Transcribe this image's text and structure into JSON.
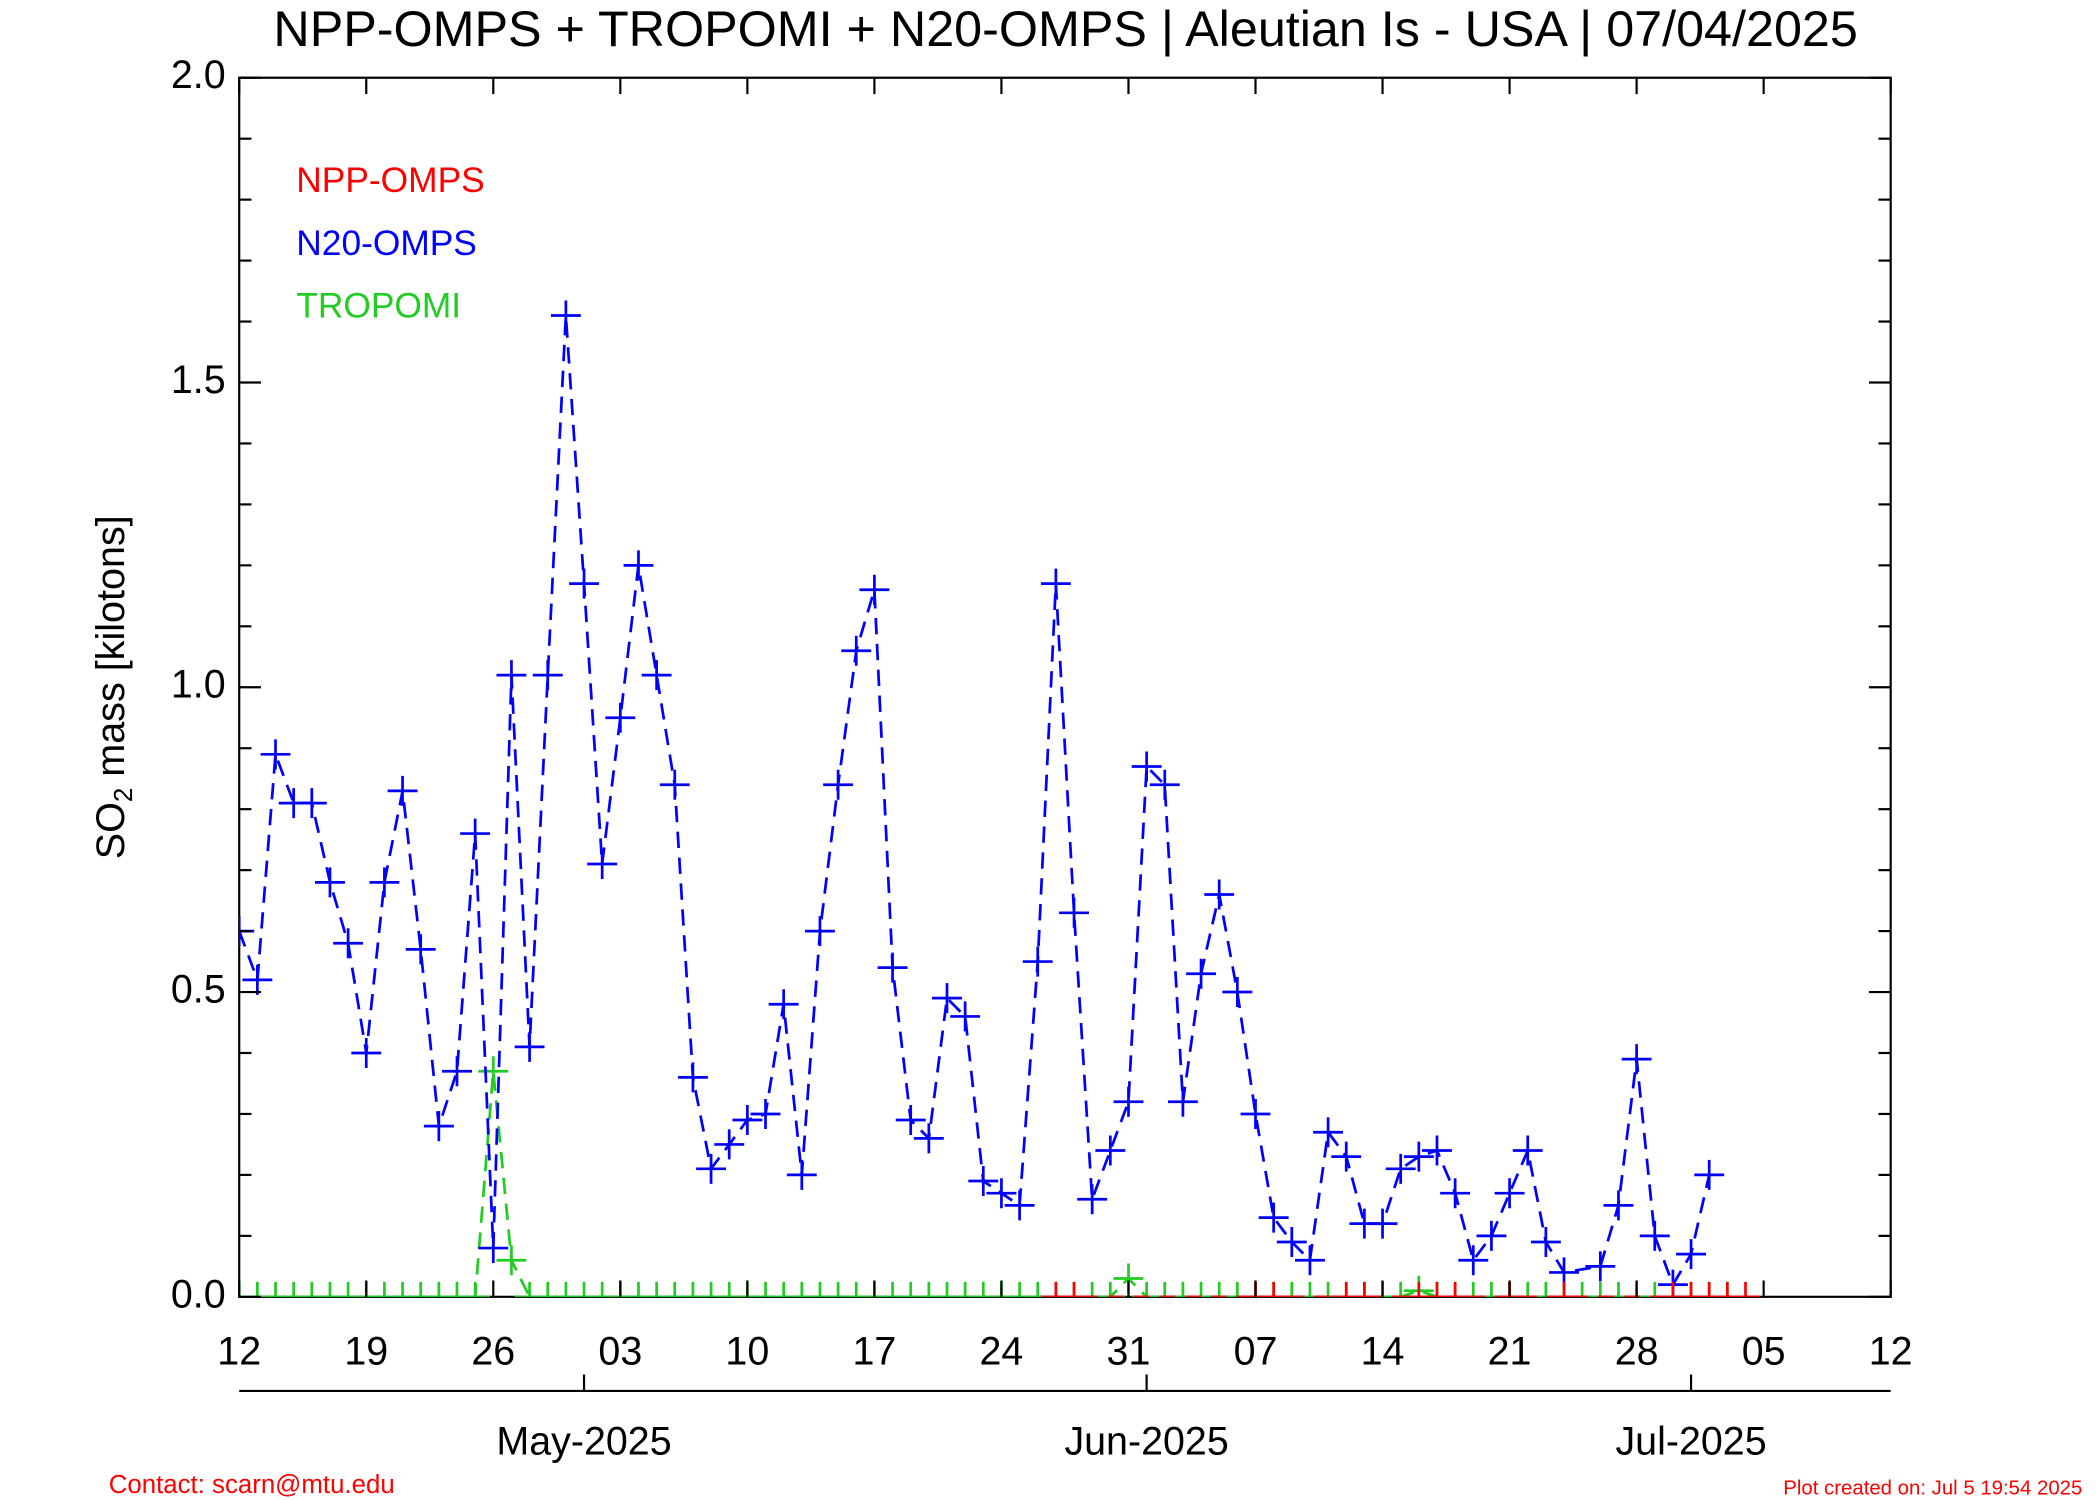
{
  "chart_data": {
    "type": "line",
    "title": "NPP-OMPS + TROPOMI + N20-OMPS | Aleutian Is - USA | 07/04/2025",
    "y_label": {
      "main": "SO",
      "sub": "2",
      "rest": " mass [kilotons]"
    },
    "xlim": [
      "2025-04-12",
      "2025-07-12"
    ],
    "xticks": [
      {
        "value": "2025-04-12",
        "label": "12"
      },
      {
        "value": "2025-04-19",
        "label": "19"
      },
      {
        "value": "2025-04-26",
        "label": "26"
      },
      {
        "value": "2025-05-03",
        "label": "03"
      },
      {
        "value": "2025-05-10",
        "label": "10"
      },
      {
        "value": "2025-05-17",
        "label": "17"
      },
      {
        "value": "2025-05-24",
        "label": "24"
      },
      {
        "value": "2025-05-31",
        "label": "31"
      },
      {
        "value": "2025-06-07",
        "label": "07"
      },
      {
        "value": "2025-06-14",
        "label": "14"
      },
      {
        "value": "2025-06-21",
        "label": "21"
      },
      {
        "value": "2025-06-28",
        "label": "28"
      },
      {
        "value": "2025-07-05",
        "label": "05"
      },
      {
        "value": "2025-07-12",
        "label": "12"
      }
    ],
    "month_ticks": [
      {
        "value": "2025-05-01",
        "label": "May-2025"
      },
      {
        "value": "2025-06-01",
        "label": "Jun-2025"
      },
      {
        "value": "2025-07-01",
        "label": "Jul-2025"
      }
    ],
    "ylim": [
      0,
      2
    ],
    "yticks": [
      {
        "value": 0,
        "label": "0.0"
      },
      0.5,
      {
        "value": 1,
        "label": "1.0"
      },
      1.5,
      {
        "value": 2,
        "label": "2.0"
      }
    ],
    "yticks_minor": [
      0.1,
      0.2,
      0.3,
      0.4,
      0.6,
      0.7,
      0.8,
      0.9,
      1.1,
      1.2,
      1.3,
      1.4,
      1.6,
      1.7,
      1.8,
      1.9
    ],
    "legend": "upper left",
    "series": [
      {
        "name": "NPP-OMPS",
        "color": "#ff0000",
        "x": [
          "2025-05-27",
          "2025-05-28",
          "2025-06-07",
          "2025-06-08",
          "2025-06-12",
          "2025-06-13",
          "2025-06-16",
          "2025-06-17",
          "2025-06-18",
          "2025-06-21",
          "2025-06-24",
          "2025-06-30",
          "2025-07-01",
          "2025-07-02",
          "2025-07-03",
          "2025-07-04"
        ],
        "values": [
          0,
          0,
          0,
          0,
          0,
          0,
          0,
          0,
          0,
          0,
          0,
          0,
          0,
          0,
          0,
          0
        ]
      },
      {
        "name": "N20-OMPS",
        "color": "#0000ff",
        "x": [
          "2025-04-12",
          "2025-04-13",
          "2025-04-14",
          "2025-04-15",
          "2025-04-16",
          "2025-04-17",
          "2025-04-18",
          "2025-04-19",
          "2025-04-20",
          "2025-04-21",
          "2025-04-22",
          "2025-04-23",
          "2025-04-24",
          "2025-04-25",
          "2025-04-26",
          "2025-04-27",
          "2025-04-28",
          "2025-04-29",
          "2025-04-30",
          "2025-05-01",
          "2025-05-02",
          "2025-05-03",
          "2025-05-04",
          "2025-05-05",
          "2025-05-06",
          "2025-05-07",
          "2025-05-08",
          "2025-05-09",
          "2025-05-10",
          "2025-05-11",
          "2025-05-12",
          "2025-05-13",
          "2025-05-14",
          "2025-05-15",
          "2025-05-16",
          "2025-05-17",
          "2025-05-18",
          "2025-05-19",
          "2025-05-20",
          "2025-05-21",
          "2025-05-22",
          "2025-05-23",
          "2025-05-24",
          "2025-05-25",
          "2025-05-26",
          "2025-05-27",
          "2025-05-28",
          "2025-05-29",
          "2025-05-30",
          "2025-05-31",
          "2025-06-01",
          "2025-06-02",
          "2025-06-03",
          "2025-06-04",
          "2025-06-05",
          "2025-06-06",
          "2025-06-07",
          "2025-06-08",
          "2025-06-09",
          "2025-06-10",
          "2025-06-11",
          "2025-06-12",
          "2025-06-13",
          "2025-06-14",
          "2025-06-15",
          "2025-06-16",
          "2025-06-17",
          "2025-06-18",
          "2025-06-19",
          "2025-06-20",
          "2025-06-21",
          "2025-06-22",
          "2025-06-23",
          "2025-06-24",
          "2025-06-26",
          "2025-06-27",
          "2025-06-28",
          "2025-06-29",
          "2025-06-30",
          "2025-07-01",
          "2025-07-02"
        ],
        "values": [
          0.6,
          0.52,
          0.89,
          0.81,
          0.81,
          0.68,
          0.58,
          0.4,
          0.68,
          0.83,
          0.57,
          0.28,
          0.37,
          0.76,
          0.08,
          1.02,
          0.41,
          1.02,
          1.61,
          1.17,
          0.71,
          0.95,
          1.2,
          1.02,
          0.84,
          0.36,
          0.21,
          0.25,
          0.29,
          0.3,
          0.48,
          0.2,
          0.6,
          0.84,
          1.06,
          1.16,
          0.54,
          0.29,
          0.26,
          0.49,
          0.46,
          0.19,
          0.17,
          0.15,
          0.55,
          1.17,
          0.63,
          0.16,
          0.24,
          0.32,
          0.87,
          0.84,
          0.32,
          0.53,
          0.66,
          0.5,
          0.3,
          0.13,
          0.09,
          0.06,
          0.27,
          0.23,
          0.12,
          0.12,
          0.21,
          0.23,
          0.24,
          0.17,
          0.06,
          0.1,
          0.17,
          0.24,
          0.09,
          0.04,
          0.05,
          0.15,
          0.39,
          0.1,
          0.02,
          0.07,
          0.2
        ]
      },
      {
        "name": "TROPOMI",
        "color": "#22cc22",
        "x": [
          "2025-04-12",
          "2025-04-13",
          "2025-04-14",
          "2025-04-15",
          "2025-04-16",
          "2025-04-17",
          "2025-04-18",
          "2025-04-19",
          "2025-04-20",
          "2025-04-21",
          "2025-04-22",
          "2025-04-23",
          "2025-04-24",
          "2025-04-25",
          "2025-04-26",
          "2025-04-27",
          "2025-04-28",
          "2025-04-29",
          "2025-04-30",
          "2025-05-01",
          "2025-05-02",
          "2025-05-03",
          "2025-05-04",
          "2025-05-05",
          "2025-05-06",
          "2025-05-07",
          "2025-05-08",
          "2025-05-09",
          "2025-05-10",
          "2025-05-11",
          "2025-05-12",
          "2025-05-13",
          "2025-05-14",
          "2025-05-15",
          "2025-05-16",
          "2025-05-17",
          "2025-05-18",
          "2025-05-19",
          "2025-05-20",
          "2025-05-21",
          "2025-05-22",
          "2025-05-23",
          "2025-05-24",
          "2025-05-25",
          "2025-05-26",
          "2025-05-27",
          "2025-05-28",
          "2025-05-29",
          "2025-05-30",
          "2025-05-31",
          "2025-06-01",
          "2025-06-02",
          "2025-06-03",
          "2025-06-04",
          "2025-06-05",
          "2025-06-06",
          "2025-06-07",
          "2025-06-08",
          "2025-06-09",
          "2025-06-10",
          "2025-06-11",
          "2025-06-12",
          "2025-06-13",
          "2025-06-14",
          "2025-06-15",
          "2025-06-16",
          "2025-06-17",
          "2025-06-18",
          "2025-06-19",
          "2025-06-20",
          "2025-06-21",
          "2025-06-22",
          "2025-06-23",
          "2025-06-24",
          "2025-06-25",
          "2025-06-26",
          "2025-06-27",
          "2025-06-28",
          "2025-06-29",
          "2025-06-30",
          "2025-07-01",
          "2025-07-02",
          "2025-07-03"
        ],
        "values": [
          0,
          0,
          0,
          0,
          0,
          0,
          0,
          0,
          0,
          0,
          0,
          0,
          0,
          0,
          0.37,
          0.06,
          0,
          0,
          0,
          0,
          0,
          0,
          0,
          0,
          0,
          0,
          0,
          0,
          0,
          0,
          0,
          0,
          0,
          0,
          0,
          0,
          0,
          0,
          0,
          0,
          0,
          0,
          0,
          0,
          0,
          0,
          0,
          0,
          0,
          0.03,
          0,
          0,
          0,
          0,
          0,
          0,
          0,
          0,
          0,
          0,
          0,
          0,
          0,
          0,
          0,
          0.01,
          0,
          0,
          0,
          0,
          0,
          0,
          0,
          0,
          0,
          0,
          0,
          0,
          0,
          0,
          0,
          0,
          0
        ]
      }
    ],
    "contact": "Contact: scarn@mtu.edu",
    "created": "Plot created on: Jul  5 19:54 2025"
  }
}
